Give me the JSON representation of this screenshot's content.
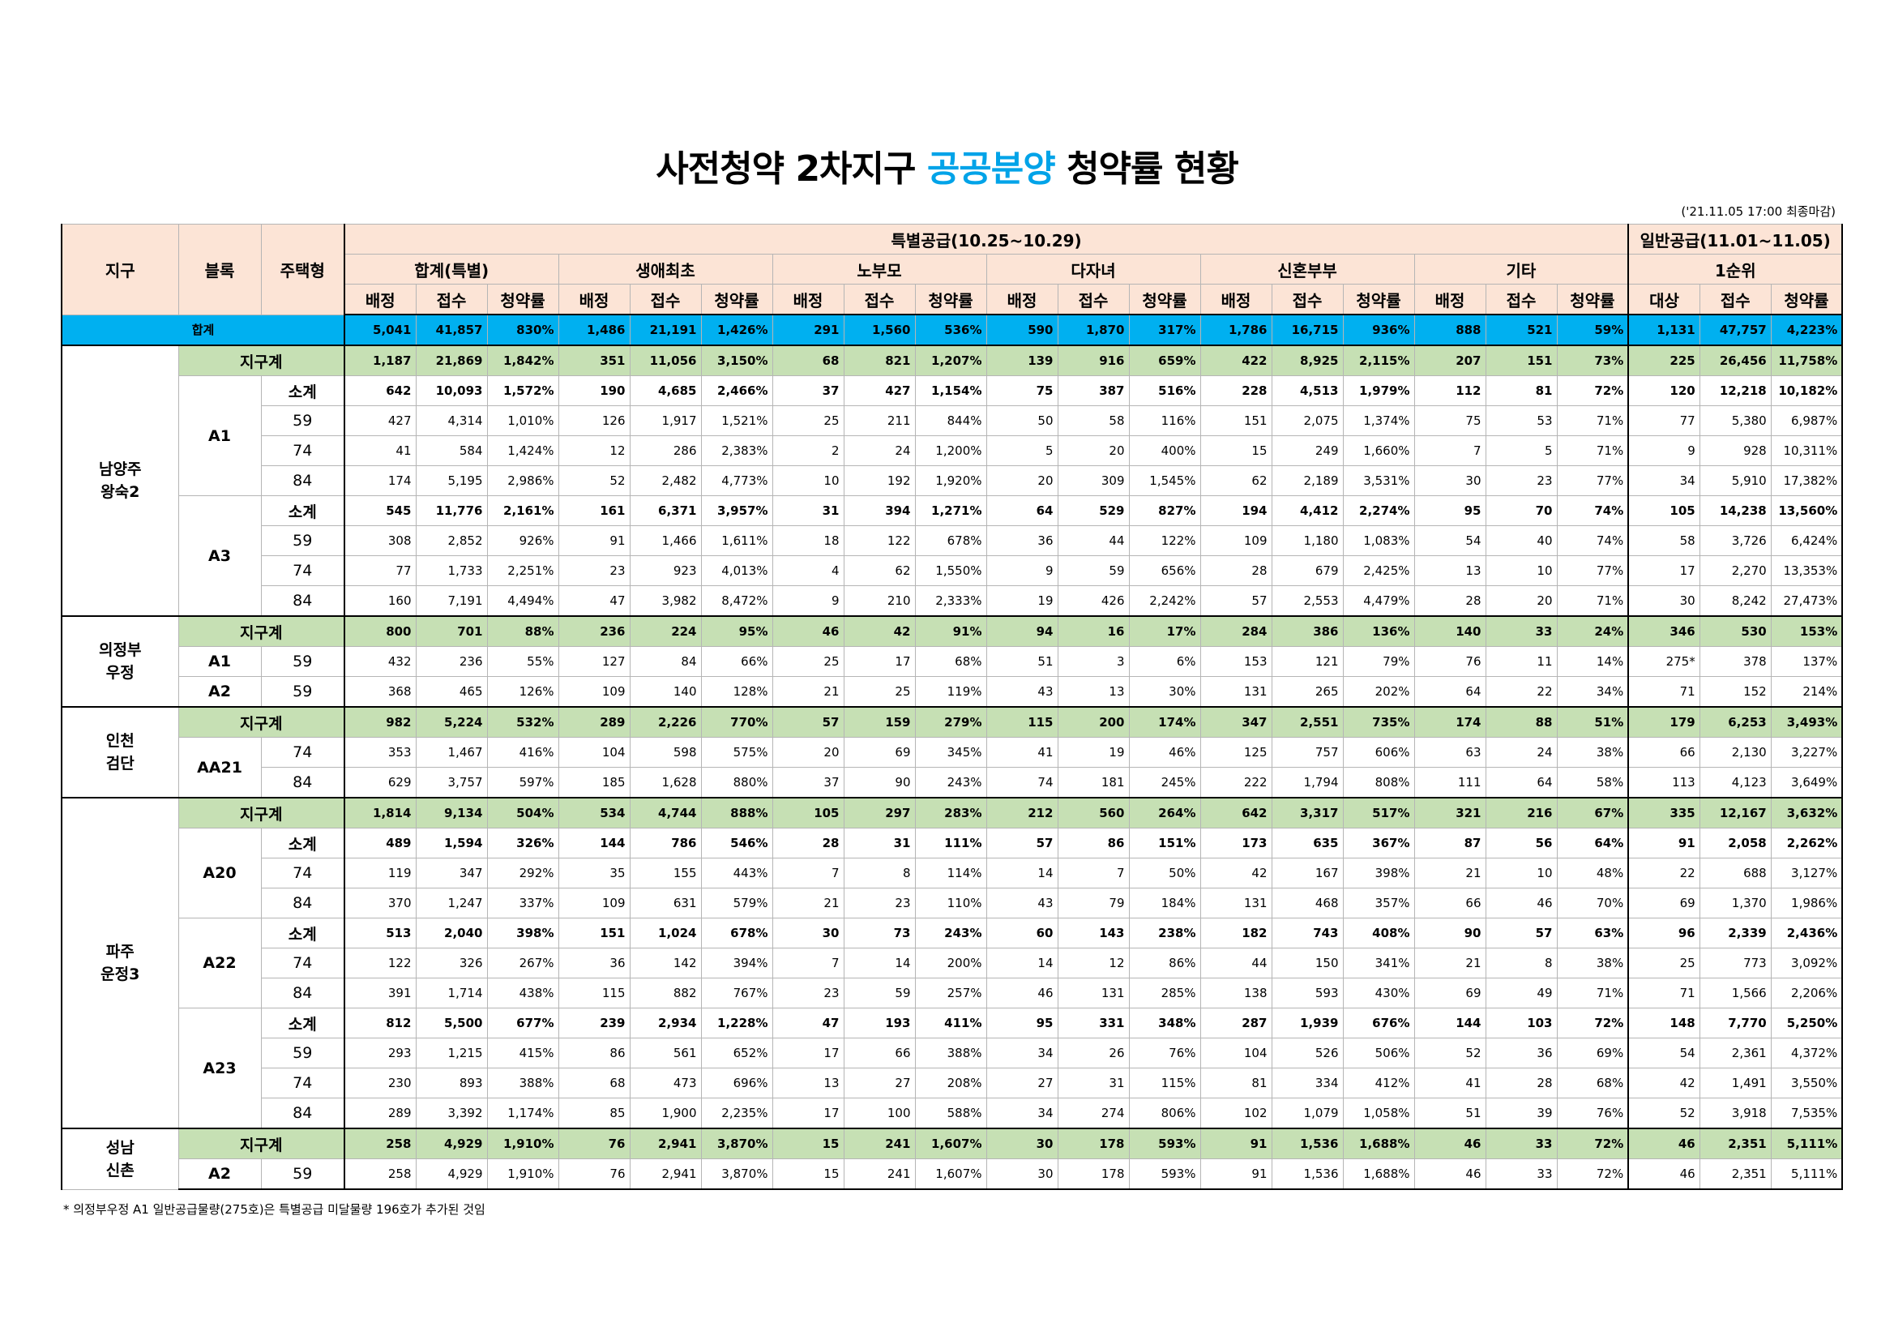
{
  "title": {
    "prefix": "사전청약 2차지구",
    "highlight": "공공분양",
    "suffix": "청약률 현황"
  },
  "deadline": "('21.11.05 17:00 최종마감)",
  "header": {
    "district": "지구",
    "block": "블록",
    "type": "주택형",
    "special": "특별공급(10.25~10.29)",
    "general": "일반공급(11.01~11.05)",
    "special_groups": [
      "합계(특별)",
      "생애최초",
      "노부모",
      "다자녀",
      "신혼부부",
      "기타"
    ],
    "general_group": "1순위",
    "special_columns": [
      "배정",
      "접수",
      "청약률"
    ],
    "general_columns": [
      "대상",
      "접수",
      "청약률"
    ]
  },
  "total": {
    "label": "합계",
    "cells": [
      "5,041",
      "41,857",
      "830%",
      "1,486",
      "21,191",
      "1,426%",
      "291",
      "1,560",
      "536%",
      "590",
      "1,870",
      "317%",
      "1,786",
      "16,715",
      "936%",
      "888",
      "521",
      "59%",
      "1,131",
      "47,757",
      "4,223%"
    ]
  },
  "districts": [
    {
      "name": [
        "남양주",
        "왕숙2"
      ],
      "subtotal": {
        "label": "지구계",
        "cells": [
          "1,187",
          "21,869",
          "1,842%",
          "351",
          "11,056",
          "3,150%",
          "68",
          "821",
          "1,207%",
          "139",
          "916",
          "659%",
          "422",
          "8,925",
          "2,115%",
          "207",
          "151",
          "73%",
          "225",
          "26,456",
          "11,758%"
        ]
      },
      "blocks": [
        {
          "name": "A1",
          "rows": [
            {
              "type": "소계",
              "cells": [
                "642",
                "10,093",
                "1,572%",
                "190",
                "4,685",
                "2,466%",
                "37",
                "427",
                "1,154%",
                "75",
                "387",
                "516%",
                "228",
                "4,513",
                "1,979%",
                "112",
                "81",
                "72%",
                "120",
                "12,218",
                "10,182%"
              ]
            },
            {
              "type": "59",
              "cells": [
                "427",
                "4,314",
                "1,010%",
                "126",
                "1,917",
                "1,521%",
                "25",
                "211",
                "844%",
                "50",
                "58",
                "116%",
                "151",
                "2,075",
                "1,374%",
                "75",
                "53",
                "71%",
                "77",
                "5,380",
                "6,987%"
              ]
            },
            {
              "type": "74",
              "cells": [
                "41",
                "584",
                "1,424%",
                "12",
                "286",
                "2,383%",
                "2",
                "24",
                "1,200%",
                "5",
                "20",
                "400%",
                "15",
                "249",
                "1,660%",
                "7",
                "5",
                "71%",
                "9",
                "928",
                "10,311%"
              ]
            },
            {
              "type": "84",
              "cells": [
                "174",
                "5,195",
                "2,986%",
                "52",
                "2,482",
                "4,773%",
                "10",
                "192",
                "1,920%",
                "20",
                "309",
                "1,545%",
                "62",
                "2,189",
                "3,531%",
                "30",
                "23",
                "77%",
                "34",
                "5,910",
                "17,382%"
              ]
            }
          ]
        },
        {
          "name": "A3",
          "rows": [
            {
              "type": "소계",
              "cells": [
                "545",
                "11,776",
                "2,161%",
                "161",
                "6,371",
                "3,957%",
                "31",
                "394",
                "1,271%",
                "64",
                "529",
                "827%",
                "194",
                "4,412",
                "2,274%",
                "95",
                "70",
                "74%",
                "105",
                "14,238",
                "13,560%"
              ]
            },
            {
              "type": "59",
              "cells": [
                "308",
                "2,852",
                "926%",
                "91",
                "1,466",
                "1,611%",
                "18",
                "122",
                "678%",
                "36",
                "44",
                "122%",
                "109",
                "1,180",
                "1,083%",
                "54",
                "40",
                "74%",
                "58",
                "3,726",
                "6,424%"
              ]
            },
            {
              "type": "74",
              "cells": [
                "77",
                "1,733",
                "2,251%",
                "23",
                "923",
                "4,013%",
                "4",
                "62",
                "1,550%",
                "9",
                "59",
                "656%",
                "28",
                "679",
                "2,425%",
                "13",
                "10",
                "77%",
                "17",
                "2,270",
                "13,353%"
              ]
            },
            {
              "type": "84",
              "cells": [
                "160",
                "7,191",
                "4,494%",
                "47",
                "3,982",
                "8,472%",
                "9",
                "210",
                "2,333%",
                "19",
                "426",
                "2,242%",
                "57",
                "2,553",
                "4,479%",
                "28",
                "20",
                "71%",
                "30",
                "8,242",
                "27,473%"
              ]
            }
          ]
        }
      ]
    },
    {
      "name": [
        "의정부",
        "우정"
      ],
      "subtotal": {
        "label": "지구계",
        "cells": [
          "800",
          "701",
          "88%",
          "236",
          "224",
          "95%",
          "46",
          "42",
          "91%",
          "94",
          "16",
          "17%",
          "284",
          "386",
          "136%",
          "140",
          "33",
          "24%",
          "346",
          "530",
          "153%"
        ]
      },
      "blocks": [
        {
          "name": "A1",
          "rows": [
            {
              "type": "59",
              "cells": [
                "432",
                "236",
                "55%",
                "127",
                "84",
                "66%",
                "25",
                "17",
                "68%",
                "51",
                "3",
                "6%",
                "153",
                "121",
                "79%",
                "76",
                "11",
                "14%",
                "275*",
                "378",
                "137%"
              ]
            }
          ]
        },
        {
          "name": "A2",
          "rows": [
            {
              "type": "59",
              "cells": [
                "368",
                "465",
                "126%",
                "109",
                "140",
                "128%",
                "21",
                "25",
                "119%",
                "43",
                "13",
                "30%",
                "131",
                "265",
                "202%",
                "64",
                "22",
                "34%",
                "71",
                "152",
                "214%"
              ]
            }
          ]
        }
      ]
    },
    {
      "name": [
        "인천",
        "검단"
      ],
      "subtotal": {
        "label": "지구계",
        "cells": [
          "982",
          "5,224",
          "532%",
          "289",
          "2,226",
          "770%",
          "57",
          "159",
          "279%",
          "115",
          "200",
          "174%",
          "347",
          "2,551",
          "735%",
          "174",
          "88",
          "51%",
          "179",
          "6,253",
          "3,493%"
        ]
      },
      "blocks": [
        {
          "name": "AA21",
          "rows": [
            {
              "type": "74",
              "cells": [
                "353",
                "1,467",
                "416%",
                "104",
                "598",
                "575%",
                "20",
                "69",
                "345%",
                "41",
                "19",
                "46%",
                "125",
                "757",
                "606%",
                "63",
                "24",
                "38%",
                "66",
                "2,130",
                "3,227%"
              ]
            },
            {
              "type": "84",
              "cells": [
                "629",
                "3,757",
                "597%",
                "185",
                "1,628",
                "880%",
                "37",
                "90",
                "243%",
                "74",
                "181",
                "245%",
                "222",
                "1,794",
                "808%",
                "111",
                "64",
                "58%",
                "113",
                "4,123",
                "3,649%"
              ]
            }
          ]
        }
      ]
    },
    {
      "name": [
        "파주",
        "운정3"
      ],
      "subtotal": {
        "label": "지구계",
        "cells": [
          "1,814",
          "9,134",
          "504%",
          "534",
          "4,744",
          "888%",
          "105",
          "297",
          "283%",
          "212",
          "560",
          "264%",
          "642",
          "3,317",
          "517%",
          "321",
          "216",
          "67%",
          "335",
          "12,167",
          "3,632%"
        ]
      },
      "blocks": [
        {
          "name": "A20",
          "rows": [
            {
              "type": "소계",
              "cells": [
                "489",
                "1,594",
                "326%",
                "144",
                "786",
                "546%",
                "28",
                "31",
                "111%",
                "57",
                "86",
                "151%",
                "173",
                "635",
                "367%",
                "87",
                "56",
                "64%",
                "91",
                "2,058",
                "2,262%"
              ]
            },
            {
              "type": "74",
              "cells": [
                "119",
                "347",
                "292%",
                "35",
                "155",
                "443%",
                "7",
                "8",
                "114%",
                "14",
                "7",
                "50%",
                "42",
                "167",
                "398%",
                "21",
                "10",
                "48%",
                "22",
                "688",
                "3,127%"
              ]
            },
            {
              "type": "84",
              "cells": [
                "370",
                "1,247",
                "337%",
                "109",
                "631",
                "579%",
                "21",
                "23",
                "110%",
                "43",
                "79",
                "184%",
                "131",
                "468",
                "357%",
                "66",
                "46",
                "70%",
                "69",
                "1,370",
                "1,986%"
              ]
            }
          ]
        },
        {
          "name": "A22",
          "rows": [
            {
              "type": "소계",
              "cells": [
                "513",
                "2,040",
                "398%",
                "151",
                "1,024",
                "678%",
                "30",
                "73",
                "243%",
                "60",
                "143",
                "238%",
                "182",
                "743",
                "408%",
                "90",
                "57",
                "63%",
                "96",
                "2,339",
                "2,436%"
              ]
            },
            {
              "type": "74",
              "cells": [
                "122",
                "326",
                "267%",
                "36",
                "142",
                "394%",
                "7",
                "14",
                "200%",
                "14",
                "12",
                "86%",
                "44",
                "150",
                "341%",
                "21",
                "8",
                "38%",
                "25",
                "773",
                "3,092%"
              ]
            },
            {
              "type": "84",
              "cells": [
                "391",
                "1,714",
                "438%",
                "115",
                "882",
                "767%",
                "23",
                "59",
                "257%",
                "46",
                "131",
                "285%",
                "138",
                "593",
                "430%",
                "69",
                "49",
                "71%",
                "71",
                "1,566",
                "2,206%"
              ]
            }
          ]
        },
        {
          "name": "A23",
          "rows": [
            {
              "type": "소계",
              "cells": [
                "812",
                "5,500",
                "677%",
                "239",
                "2,934",
                "1,228%",
                "47",
                "193",
                "411%",
                "95",
                "331",
                "348%",
                "287",
                "1,939",
                "676%",
                "144",
                "103",
                "72%",
                "148",
                "7,770",
                "5,250%"
              ]
            },
            {
              "type": "59",
              "cells": [
                "293",
                "1,215",
                "415%",
                "86",
                "561",
                "652%",
                "17",
                "66",
                "388%",
                "34",
                "26",
                "76%",
                "104",
                "526",
                "506%",
                "52",
                "36",
                "69%",
                "54",
                "2,361",
                "4,372%"
              ]
            },
            {
              "type": "74",
              "cells": [
                "230",
                "893",
                "388%",
                "68",
                "473",
                "696%",
                "13",
                "27",
                "208%",
                "27",
                "31",
                "115%",
                "81",
                "334",
                "412%",
                "41",
                "28",
                "68%",
                "42",
                "1,491",
                "3,550%"
              ]
            },
            {
              "type": "84",
              "cells": [
                "289",
                "3,392",
                "1,174%",
                "85",
                "1,900",
                "2,235%",
                "17",
                "100",
                "588%",
                "34",
                "274",
                "806%",
                "102",
                "1,079",
                "1,058%",
                "51",
                "39",
                "76%",
                "52",
                "3,918",
                "7,535%"
              ]
            }
          ]
        }
      ]
    },
    {
      "name": [
        "성남",
        "신촌"
      ],
      "subtotal": {
        "label": "지구계",
        "cells": [
          "258",
          "4,929",
          "1,910%",
          "76",
          "2,941",
          "3,870%",
          "15",
          "241",
          "1,607%",
          "30",
          "178",
          "593%",
          "91",
          "1,536",
          "1,688%",
          "46",
          "33",
          "72%",
          "46",
          "2,351",
          "5,111%"
        ]
      },
      "blocks": [
        {
          "name": "A2",
          "rows": [
            {
              "type": "59",
              "cells": [
                "258",
                "4,929",
                "1,910%",
                "76",
                "2,941",
                "3,870%",
                "15",
                "241",
                "1,607%",
                "30",
                "178",
                "593%",
                "91",
                "1,536",
                "1,688%",
                "46",
                "33",
                "72%",
                "46",
                "2,351",
                "5,111%"
              ]
            }
          ]
        }
      ]
    }
  ],
  "footnote": "* 의정부우정 A1 일반공급물량(275호)은 특별공급 미달물량 196호가 추가된 것임"
}
